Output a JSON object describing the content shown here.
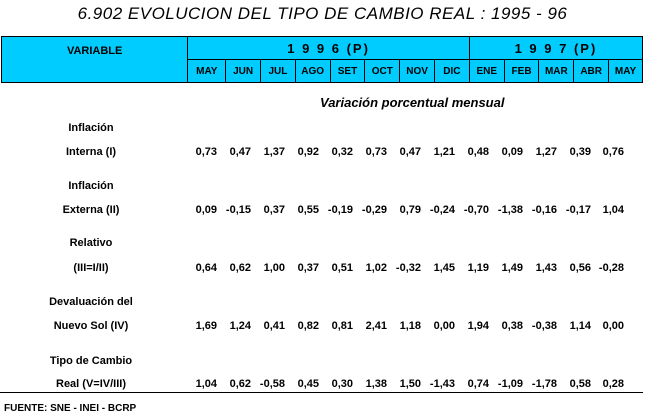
{
  "title": "6.902  EVOLUCION DEL TIPO DE CAMBIO REAL : 1995 - 96",
  "header": {
    "variable_label": "VARIABLE",
    "year1": "1 9 9 6 (P)",
    "year2": "1 9 9 7 (P)",
    "months": [
      "MAY",
      "JUN",
      "JUL",
      "AGO",
      "SET",
      "OCT",
      "NOV",
      "DIC",
      "ENE",
      "FEB",
      "MAR",
      "ABR",
      "MAY"
    ]
  },
  "subtitle": "Variación porcentual mensual",
  "rows": [
    {
      "label1": "Inflación",
      "label2": "Interna (I)",
      "values": [
        "0,73",
        "0,47",
        "1,37",
        "0,92",
        "0,32",
        "0,73",
        "0,47",
        "1,21",
        "0,48",
        "0,09",
        "1,27",
        "0,39",
        "0,76"
      ]
    },
    {
      "label1": "Inflación",
      "label2": "Externa (II)",
      "values": [
        "0,09",
        "-0,15",
        "0,37",
        "0,55",
        "-0,19",
        "-0,29",
        "0,79",
        "-0,24",
        "-0,70",
        "-1,38",
        "-0,16",
        "-0,17",
        "1,04"
      ]
    },
    {
      "label1": "Relativo",
      "label2": "(III=I/II)",
      "values": [
        "0,64",
        "0,62",
        "1,00",
        "0,37",
        "0,51",
        "1,02",
        "-0,32",
        "1,45",
        "1,19",
        "1,49",
        "1,43",
        "0,56",
        "-0,28"
      ]
    },
    {
      "label1": "Devaluación del",
      "label2": "Nuevo Sol (IV)",
      "values": [
        "1,69",
        "1,24",
        "0,41",
        "0,82",
        "0,81",
        "2,41",
        "1,18",
        "0,00",
        "1,94",
        "0,38",
        "-0,38",
        "1,14",
        "0,00"
      ]
    },
    {
      "label1": "Tipo de Cambio",
      "label2": "Real (V=IV/III)",
      "values": [
        "1,04",
        "0,62",
        "-0,58",
        "0,45",
        "0,30",
        "1,38",
        "1,50",
        "-1,43",
        "0,74",
        "-1,09",
        "-1,78",
        "0,58",
        "0,28"
      ]
    }
  ],
  "source": "FUENTE: SNE - INEI - BCRP"
}
